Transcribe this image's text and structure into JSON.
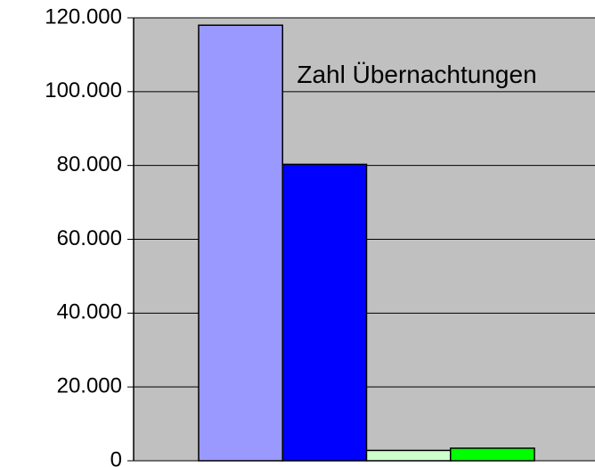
{
  "chart_data": {
    "type": "bar",
    "title": "Zahl Übernachtungen",
    "categories": [
      null,
      null,
      null,
      null
    ],
    "values": [
      118000,
      80300,
      2800,
      3400
    ],
    "colors": [
      "#9999ff",
      "#0000ff",
      "#ccffcc",
      "#00ff00"
    ],
    "ylim": [
      0,
      120000
    ],
    "yticks": [
      0,
      {
        "value": 20000,
        "label": "20.000"
      },
      {
        "value": 40000,
        "label": "40.000"
      },
      {
        "value": 60000,
        "label": "60.000"
      },
      {
        "value": 80000,
        "label": "80.000"
      },
      {
        "value": 100000,
        "label": "100.000"
      },
      {
        "value": 120000,
        "label": "120.000"
      }
    ],
    "grid": true
  }
}
